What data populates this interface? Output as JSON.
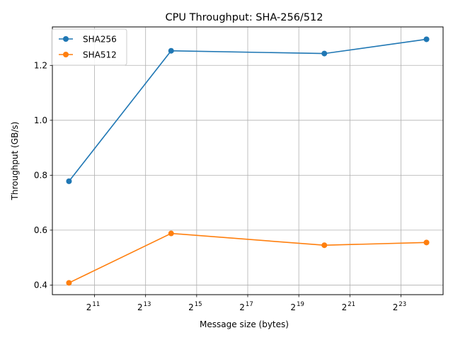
{
  "chart_data": {
    "type": "line",
    "title": "CPU Throughput: SHA-256/512",
    "xlabel": "Message size (bytes)",
    "ylabel": "Throughput (GB/s)",
    "x_scale": "log2",
    "x_tick_exponents": [
      11,
      13,
      15,
      17,
      19,
      21,
      23
    ],
    "x_tick_base": "2",
    "x": [
      1024,
      16384,
      1048576,
      16777216
    ],
    "y_ticks": [
      "0.4",
      "0.6",
      "0.8",
      "1.0",
      "1.2"
    ],
    "ylim": [
      0.365,
      1.34
    ],
    "grid": true,
    "legend_position": "upper left",
    "series": [
      {
        "name": "SHA256",
        "color": "#1f77b4",
        "values": [
          0.778,
          1.253,
          1.243,
          1.295
        ]
      },
      {
        "name": "SHA512",
        "color": "#ff7f0e",
        "values": [
          0.408,
          0.588,
          0.545,
          0.555
        ]
      }
    ]
  }
}
